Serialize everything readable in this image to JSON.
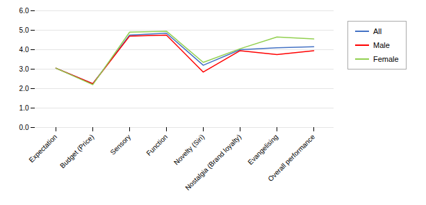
{
  "chart_data": {
    "type": "line",
    "categories": [
      "Expectation",
      "Budget (Price)",
      "Sensory",
      "Function",
      "Novelty (Siri)",
      "Nostalgia (Brand loyalty)",
      "Evangelising",
      "Overall performance"
    ],
    "series": [
      {
        "name": "All",
        "color": "#4472C4",
        "values": [
          3.05,
          2.25,
          4.75,
          4.85,
          3.2,
          4.0,
          4.1,
          4.15
        ]
      },
      {
        "name": "Male",
        "color": "#FF0000",
        "values": [
          3.05,
          2.25,
          4.7,
          4.75,
          2.85,
          3.95,
          3.75,
          3.95
        ]
      },
      {
        "name": "Female",
        "color": "#92D050",
        "values": [
          3.05,
          2.2,
          4.9,
          4.95,
          3.35,
          4.05,
          4.65,
          4.55
        ]
      }
    ],
    "ylim": [
      0,
      6
    ],
    "yticks": [
      0,
      1,
      2,
      3,
      4,
      5,
      6
    ],
    "grid": true,
    "legend": "right"
  }
}
